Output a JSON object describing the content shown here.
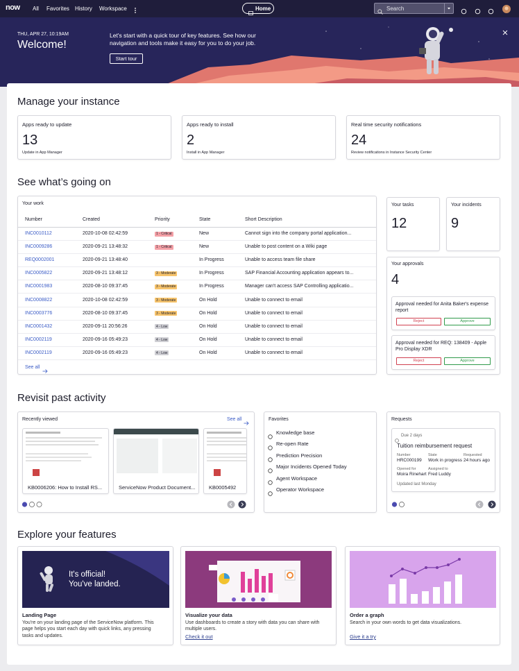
{
  "nav": {
    "logo": "now",
    "items": [
      "All",
      "Favorites",
      "History",
      "Workspace"
    ],
    "home": "Home",
    "search": "Search"
  },
  "hero": {
    "date": "THU, APR 27, 10:19AM",
    "title": "Welcome!",
    "text": "Let's start with a quick tour of key features. See how our navigation and tools make it easy for you to do your job.",
    "button": "Start tour"
  },
  "manage": {
    "title": "Manage your instance",
    "cards": [
      {
        "title": "Apps ready to update",
        "value": 13,
        "note": "Update in App Manager"
      },
      {
        "title": "Apps ready to install",
        "value": 2,
        "note": "Install in App Manager"
      },
      {
        "title": "Real time security notifications",
        "value": 24,
        "note": "Review notifications in Instance Security Center"
      }
    ]
  },
  "going_on": {
    "title": "See what’s going on",
    "work": {
      "title": "Your work",
      "columns": [
        "Number",
        "Created",
        "Priority",
        "State",
        "Short Description"
      ],
      "rows": [
        {
          "number": "INC0010112",
          "created": "2020-10-08 02:42:59",
          "priority": {
            "label": "1 - Critical",
            "color": "#f4a0a6"
          },
          "state": "New",
          "description": "Cannot sign into the company portal application..."
        },
        {
          "number": "INC0009286",
          "created": "2020-09-21 13:48:32",
          "priority": {
            "label": "1 - Critical",
            "color": "#f4a0a6"
          },
          "state": "New",
          "description": "Unable to post content on a Wiki page"
        },
        {
          "number": "REQ0002001",
          "created": "2020-09-21 13:48:40",
          "priority": null,
          "state": "In Progress",
          "description": "Unable to access team file share"
        },
        {
          "number": "INC0005822",
          "created": "2020-09-21 13:48:12",
          "priority": {
            "label": "3 - Moderate",
            "color": "#f7c46c"
          },
          "state": "In Progress",
          "description": "SAP Financial Accounting application appears to..."
        },
        {
          "number": "INC0001983",
          "created": "2020-08-10 09:37:45",
          "priority": {
            "label": "3 - Moderate",
            "color": "#f7c46c"
          },
          "state": "In Progress",
          "description": "Manager can't access SAP Controlling applicatio..."
        },
        {
          "number": "INC0008822",
          "created": "2020-10-08 02:42:59",
          "priority": {
            "label": "3 - Moderate",
            "color": "#f7c46c"
          },
          "state": "On Hold",
          "description": "Unable to connect to email"
        },
        {
          "number": "INC0003776",
          "created": "2020-08-10 09:37:45",
          "priority": {
            "label": "3 - Moderate",
            "color": "#f7c46c"
          },
          "state": "On Hold",
          "description": "Unable to connect to email"
        },
        {
          "number": "INC0001432",
          "created": "2020-09-11 20:56:26",
          "priority": {
            "label": "4 - Low",
            "color": "#cfcfd4"
          },
          "state": "On Hold",
          "description": "Unable to connect to email"
        },
        {
          "number": "INC0002119",
          "created": "2020-09-16 05:49:23",
          "priority": {
            "label": "4 - Low",
            "color": "#cfcfd4"
          },
          "state": "On Hold",
          "description": "Unable to connect to email"
        },
        {
          "number": "INC0002119",
          "created": "2020-09-16 05:49:23",
          "priority": {
            "label": "4 - Low",
            "color": "#cfcfd4"
          },
          "state": "On Hold",
          "description": "Unable to connect to email"
        }
      ],
      "see_all": "See all"
    },
    "tasks": {
      "label": "Your tasks",
      "value": 12
    },
    "incidents": {
      "label": "Your incidents",
      "value": 9
    },
    "approvals": {
      "title": "Your approvals",
      "value": 4,
      "items": [
        {
          "text": "Approval needed for Anita Baker's expense report",
          "reject": "Reject",
          "approve": "Approve"
        },
        {
          "text": "Approval needed for REQ: 138409 - Apple Pro Display XDR",
          "reject": "Reject",
          "approve": "Approve"
        }
      ]
    }
  },
  "revisit": {
    "title": "Revisit past activity",
    "recent": {
      "title": "Recently viewed",
      "see_all": "See all",
      "items": [
        "KB0006206: How to Install RS...",
        "ServiceNow Product Document...",
        "KB0005492"
      ]
    },
    "favorites": {
      "title": "Favorites",
      "items": [
        "Knowledge base",
        "Re-open Rate",
        "Prediction Precision",
        "Major Incidents Opened Today",
        "Agent Workspace",
        "Operator Workspace"
      ]
    },
    "requests": {
      "title": "Requests",
      "due": "Due 2 days",
      "name": "Tuition reimbursement request",
      "fields": [
        {
          "label": "Number",
          "value": "HRC000199"
        },
        {
          "label": "State",
          "value": "Work in progress"
        },
        {
          "label": "Requested",
          "value": "24 hours ago"
        },
        {
          "label": "Opened for",
          "value": "Moira Rinehart"
        },
        {
          "label": "Assigned to",
          "value": "Fred Luddy"
        }
      ],
      "updated": "Updated last Monday"
    }
  },
  "explore": {
    "title": "Explore your features",
    "cards": [
      {
        "image_text": [
          "It's official!",
          "You've landed."
        ],
        "title": "Landing Page",
        "text": "You're on your landing page of the ServiceNow platform. This page helps you start each day with quick links, any pressing tasks and updates."
      },
      {
        "title": "Visualize your data",
        "text": "Use dashboards to create a story with data you can share with multiple users.",
        "link": "Check it out"
      },
      {
        "title": "Order a graph",
        "text": "Search in your own words to get data visualizations.",
        "link": "Give it a try"
      }
    ]
  }
}
